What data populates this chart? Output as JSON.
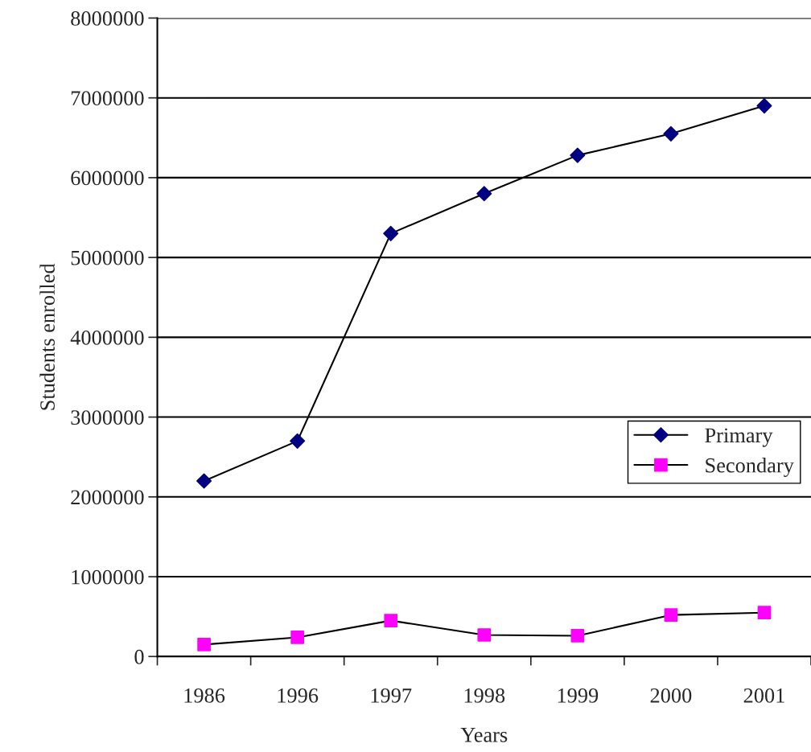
{
  "chart_data": {
    "type": "line",
    "xlabel": "Years",
    "ylabel": "Students enrolled",
    "categories": [
      "1986",
      "1996",
      "1997",
      "1998",
      "1999",
      "2000",
      "2001"
    ],
    "series": [
      {
        "name": "Primary",
        "color": "#000080",
        "marker": "diamond",
        "values": [
          2200000,
          2700000,
          5300000,
          5800000,
          6280000,
          6550000,
          6900000
        ]
      },
      {
        "name": "Secondary",
        "color": "#ff00ff",
        "marker": "square",
        "values": [
          150000,
          240000,
          450000,
          270000,
          260000,
          520000,
          550000
        ]
      }
    ],
    "ylim": [
      0,
      8000000
    ],
    "yticks": [
      0,
      1000000,
      2000000,
      3000000,
      4000000,
      5000000,
      6000000,
      7000000,
      8000000
    ],
    "grid": "y",
    "legend": "right",
    "line_style": "solid"
  }
}
